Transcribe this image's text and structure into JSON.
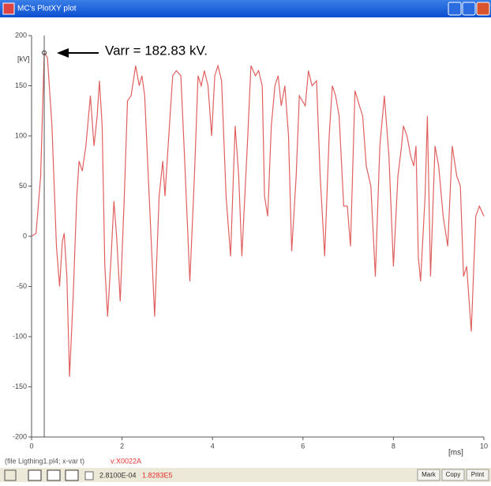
{
  "window": {
    "title": "MC's PlotXY plot"
  },
  "chart_data": {
    "type": "line",
    "y_unit": "[kV]",
    "x_unit": "[ms]",
    "annotation": "Varr = 182.83 kV.",
    "x": [
      0,
      0.1,
      0.2,
      0.28,
      0.35,
      0.45,
      0.55,
      0.62,
      0.68,
      0.72,
      0.78,
      0.84,
      0.92,
      1.0,
      1.05,
      1.12,
      1.2,
      1.3,
      1.38,
      1.45,
      1.5,
      1.56,
      1.62,
      1.68,
      1.76,
      1.82,
      1.88,
      1.96,
      2.05,
      2.12,
      2.2,
      2.3,
      2.38,
      2.44,
      2.5,
      2.6,
      2.72,
      2.82,
      2.9,
      2.95,
      3.02,
      3.12,
      3.2,
      3.3,
      3.38,
      3.5,
      3.6,
      3.68,
      3.75,
      3.82,
      3.9,
      3.98,
      4.05,
      4.12,
      4.2,
      4.3,
      4.4,
      4.5,
      4.58,
      4.65,
      4.78,
      4.85,
      4.95,
      5.02,
      5.1,
      5.15,
      5.22,
      5.3,
      5.38,
      5.45,
      5.52,
      5.6,
      5.68,
      5.75,
      5.85,
      5.92,
      6.05,
      6.12,
      6.2,
      6.3,
      6.38,
      6.48,
      6.58,
      6.65,
      6.72,
      6.8,
      6.9,
      6.98,
      7.05,
      7.15,
      7.25,
      7.32,
      7.4,
      7.5,
      7.6,
      7.7,
      7.8,
      7.9,
      8.0,
      8.1,
      8.18,
      8.22,
      8.3,
      8.38,
      8.45,
      8.5,
      8.55,
      8.6,
      8.7,
      8.75,
      8.82,
      8.92,
      9.0,
      9.1,
      9.2,
      9.3,
      9.4,
      9.48,
      9.55,
      9.62,
      9.72,
      9.82,
      9.9,
      10
    ],
    "series": [
      {
        "color": "#e06060",
        "values": [
          0,
          3,
          60,
          182.83,
          178,
          110,
          -10,
          -50,
          -5,
          3,
          -40,
          -140,
          -60,
          40,
          75,
          65,
          90,
          140,
          90,
          120,
          155,
          110,
          -30,
          -80,
          -20,
          35,
          0,
          -65,
          40,
          135,
          140,
          170,
          150,
          160,
          140,
          40,
          -80,
          40,
          75,
          40,
          90,
          160,
          165,
          160,
          80,
          -45,
          60,
          160,
          150,
          165,
          150,
          100,
          160,
          170,
          155,
          40,
          -20,
          110,
          60,
          -20,
          100,
          170,
          160,
          165,
          150,
          40,
          20,
          110,
          150,
          160,
          130,
          150,
          100,
          -15,
          60,
          140,
          130,
          165,
          150,
          155,
          60,
          -20,
          100,
          150,
          140,
          120,
          30,
          30,
          -10,
          145,
          130,
          120,
          70,
          50,
          -40,
          90,
          140,
          80,
          -30,
          60,
          90,
          110,
          100,
          80,
          70,
          90,
          -20,
          -45,
          40,
          120,
          -40,
          90,
          70,
          20,
          -10,
          90,
          60,
          50,
          -40,
          -30,
          -95,
          20,
          30,
          20
        ]
      }
    ],
    "xlim": [
      0,
      10
    ],
    "ylim": [
      -200,
      200
    ],
    "xticks": [
      0,
      2,
      4,
      6,
      8,
      10
    ],
    "yticks": [
      -200,
      -150,
      -100,
      -50,
      0,
      50,
      100,
      150,
      200
    ]
  },
  "status": {
    "file": "(file Ligthing1.pl4; x-var t)",
    "variable": "v:X0022A"
  },
  "toolbar": {
    "cursor_x": "2.8100E-04",
    "cursor_y": "1.8283E5",
    "buttons": [
      "Mark",
      "Copy",
      "Print"
    ]
  }
}
